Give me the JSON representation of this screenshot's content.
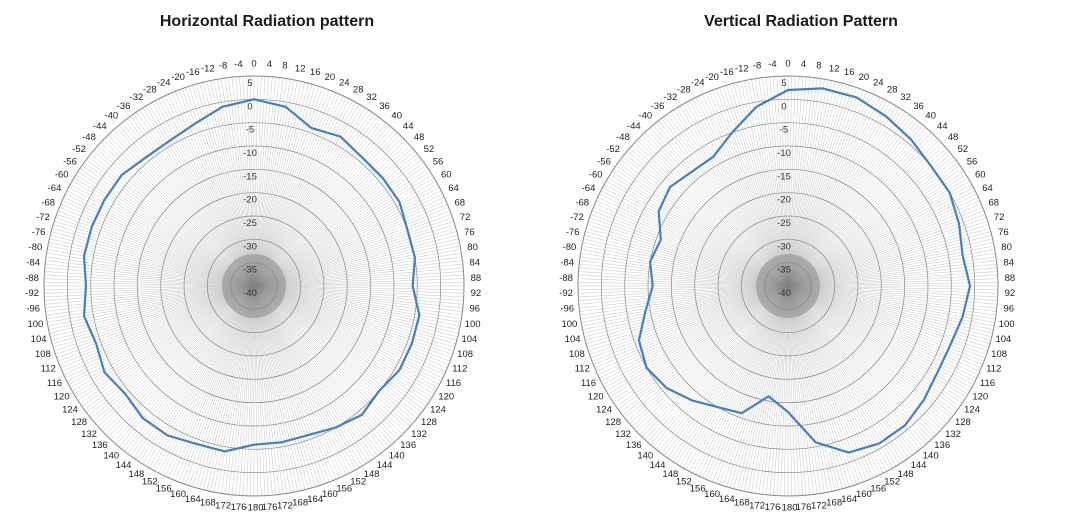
{
  "chart_data": [
    {
      "type": "polar-line",
      "title": "Horizontal Radiation pattern",
      "r_range": [
        -40,
        5
      ],
      "r_ticks": [
        5,
        0,
        -5,
        -10,
        -15,
        -20,
        -25,
        -30,
        -35,
        -40
      ],
      "angle_ticks": [
        "0",
        "4",
        "8",
        "12",
        "16",
        "20",
        "24",
        "28",
        "32",
        "36",
        "40",
        "44",
        "48",
        "52",
        "56",
        "60",
        "64",
        "68",
        "72",
        "76",
        "80",
        "84",
        "88",
        "92",
        "96",
        "100",
        "104",
        "108",
        "112",
        "116",
        "120",
        "124",
        "128",
        "132",
        "136",
        "140",
        "144",
        "148",
        "152",
        "156",
        "160",
        "164",
        "168",
        "172",
        "176",
        "-180",
        "176",
        "172",
        "168",
        "164",
        "160",
        "156",
        "152",
        "148",
        "144",
        "140",
        "136",
        "132",
        "128",
        "124",
        "120",
        "116",
        "112",
        "108",
        "104",
        "100",
        "-96",
        "-92",
        "-88",
        "-84",
        "-80",
        "-76",
        "-72",
        "-68",
        "-64",
        "-60",
        "-56",
        "-52",
        "-48",
        "-44",
        "-40",
        "-36",
        "-32",
        "-28",
        "-24",
        "-20",
        "-16",
        "-12",
        "-8",
        "-4"
      ],
      "grid": true,
      "line_color": "#4a7ebb",
      "angles": [
        0,
        10,
        20,
        30,
        40,
        50,
        60,
        70,
        80,
        90,
        100,
        110,
        120,
        130,
        140,
        150,
        160,
        170,
        180,
        190,
        200,
        210,
        220,
        230,
        240,
        250,
        260,
        270,
        280,
        290,
        300,
        310,
        320,
        330,
        340,
        350
      ],
      "values": [
        0,
        -1,
        -4,
        -3,
        -4,
        -4,
        -4,
        -5,
        -5,
        -6,
        -4,
        -4,
        -4,
        -5,
        -4,
        -5,
        -6,
        -6,
        -6,
        -4,
        -4,
        -3,
        -3,
        -4,
        -3,
        -4,
        -3,
        -4,
        -3,
        -3,
        -3,
        -3,
        -4,
        -4,
        -3,
        -1
      ]
    },
    {
      "type": "polar-line",
      "title": "Vertical Radiation Pattern",
      "r_range": [
        -40,
        5
      ],
      "r_ticks": [
        5,
        0,
        -5,
        -10,
        -15,
        -20,
        -25,
        -30,
        -35,
        -40
      ],
      "angle_ticks": [
        "0",
        "4",
        "8",
        "12",
        "16",
        "20",
        "24",
        "28",
        "32",
        "36",
        "40",
        "44",
        "48",
        "52",
        "56",
        "60",
        "64",
        "68",
        "72",
        "76",
        "80",
        "84",
        "88",
        "92",
        "96",
        "100",
        "104",
        "108",
        "112",
        "116",
        "120",
        "124",
        "128",
        "132",
        "136",
        "140",
        "144",
        "148",
        "152",
        "156",
        "160",
        "164",
        "168",
        "172",
        "176",
        "-180",
        "176",
        "172",
        "168",
        "164",
        "160",
        "156",
        "152",
        "148",
        "144",
        "140",
        "136",
        "132",
        "128",
        "124",
        "120",
        "116",
        "112",
        "108",
        "104",
        "100",
        "-96",
        "-92",
        "-88",
        "-84",
        "-80",
        "-76",
        "-72",
        "-68",
        "-64",
        "-60",
        "-56",
        "-52",
        "-48",
        "-44",
        "-40",
        "-36",
        "-32",
        "-28",
        "-24",
        "-20",
        "-16",
        "-12",
        "-8",
        "-4"
      ],
      "grid": true,
      "line_color": "#4a7ebb",
      "angles": [
        0,
        10,
        20,
        30,
        40,
        50,
        60,
        70,
        80,
        90,
        100,
        110,
        120,
        130,
        140,
        150,
        160,
        170,
        180,
        190,
        200,
        210,
        220,
        230,
        240,
        250,
        260,
        270,
        280,
        290,
        300,
        310,
        320,
        330,
        340,
        350
      ],
      "values": [
        2,
        3,
        3,
        2,
        1,
        0,
        0,
        -1,
        -2,
        -1,
        -2,
        -3,
        -3,
        -2,
        -1,
        -1,
        -2,
        -6,
        -13,
        -16,
        -11,
        -10,
        -8,
        -6,
        -5,
        -6,
        -9,
        -11,
        -10,
        -11,
        -8,
        -7,
        -8,
        -8,
        -5,
        -1
      ]
    }
  ]
}
